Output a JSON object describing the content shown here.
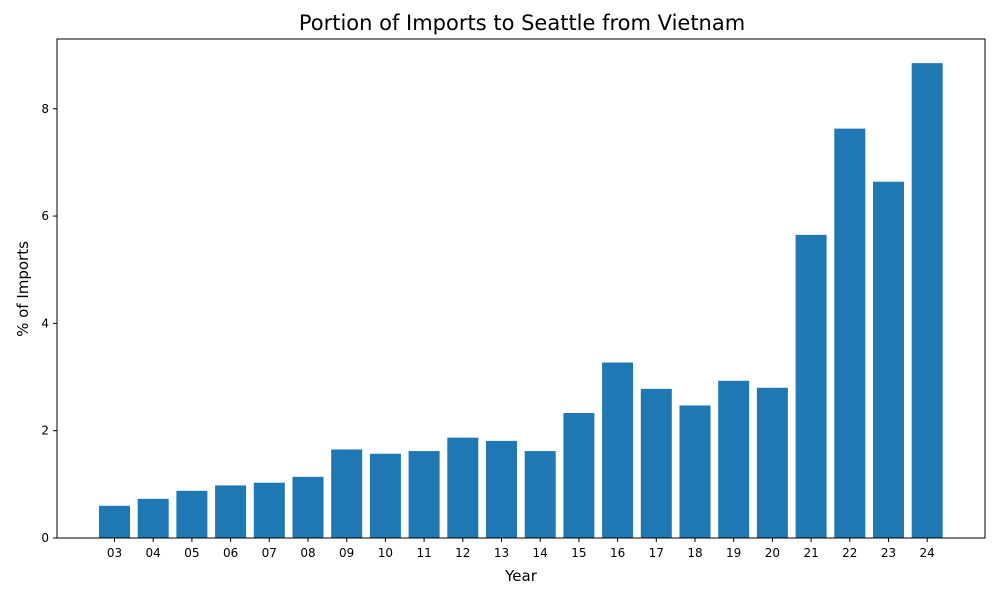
{
  "chart_data": {
    "type": "bar",
    "title": "Portion of Imports to Seattle from Vietnam",
    "xlabel": "Year",
    "ylabel": "% of Imports",
    "categories": [
      "03",
      "04",
      "05",
      "06",
      "07",
      "08",
      "09",
      "10",
      "11",
      "12",
      "13",
      "14",
      "15",
      "16",
      "17",
      "18",
      "19",
      "20",
      "21",
      "22",
      "23",
      "24"
    ],
    "values": [
      0.6,
      0.73,
      0.88,
      0.98,
      1.03,
      1.14,
      1.65,
      1.57,
      1.62,
      1.87,
      1.81,
      1.62,
      2.33,
      3.27,
      2.78,
      2.47,
      2.93,
      2.8,
      5.65,
      7.63,
      6.64,
      8.85
    ],
    "ylim": [
      0,
      9.3
    ],
    "yticks": [
      0,
      2,
      4,
      6,
      8
    ],
    "bar_color": "#1f77b4",
    "grid": false,
    "legend": "none"
  }
}
